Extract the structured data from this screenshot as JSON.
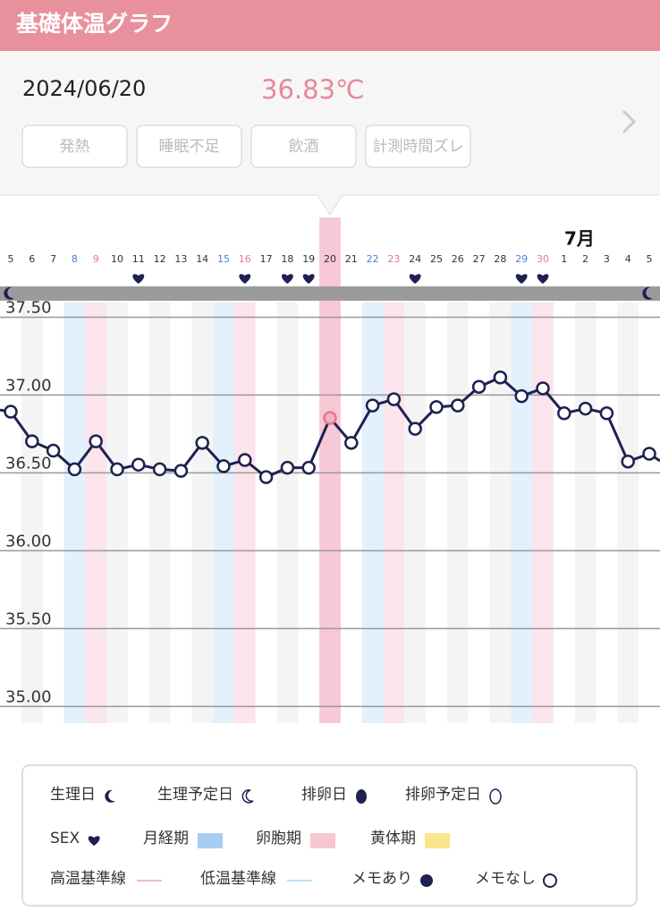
{
  "header": {
    "title": "基礎体温グラフ"
  },
  "record": {
    "date": "2024/06/20",
    "temperature": "36.83℃"
  },
  "tags": [
    "発熱",
    "睡眠不足",
    "飲酒",
    "計測時間ズレ"
  ],
  "chart_data": {
    "type": "line",
    "month_label": "7月",
    "categories": [
      "5",
      "6",
      "7",
      "8",
      "9",
      "10",
      "11",
      "12",
      "13",
      "14",
      "15",
      "16",
      "17",
      "18",
      "19",
      "20",
      "21",
      "22",
      "23",
      "24",
      "25",
      "26",
      "27",
      "28",
      "29",
      "30",
      "1",
      "2",
      "3",
      "4",
      "5"
    ],
    "values": [
      36.87,
      36.68,
      36.62,
      36.5,
      36.68,
      36.5,
      36.53,
      36.5,
      36.49,
      36.67,
      36.52,
      36.56,
      36.45,
      36.51,
      36.51,
      36.83,
      36.67,
      36.91,
      36.95,
      36.76,
      36.9,
      36.91,
      37.03,
      37.09,
      36.97,
      37.02,
      36.86,
      36.89,
      36.86,
      36.55,
      36.6
    ],
    "color": "#1e2150",
    "selected_index": 15,
    "blue_days": [
      3,
      10,
      17,
      24
    ],
    "pink_days": [
      4,
      11,
      18,
      25
    ],
    "sex_days": [
      6,
      11,
      13,
      14,
      19,
      24,
      25
    ],
    "month_start_index": 26,
    "ylim": [
      34.87,
      37.56
    ],
    "yticks": [
      {
        "value": 37.5,
        "label": "37.50"
      },
      {
        "value": 37.0,
        "label": "37.00"
      },
      {
        "value": 36.5,
        "label": "36.50"
      },
      {
        "value": 36.0,
        "label": "36.00"
      },
      {
        "value": 35.5,
        "label": "35.50"
      },
      {
        "value": 35.0,
        "label": "35.00"
      }
    ],
    "grid": true
  },
  "legend": [
    [
      "生理日",
      "生理予定日",
      "排卵日",
      "排卵予定日"
    ],
    [
      "SEX",
      "月経期",
      "卵胞期",
      "黄体期"
    ],
    [
      "高温基準線",
      "低温基準線",
      "メモあり",
      "メモなし"
    ]
  ]
}
